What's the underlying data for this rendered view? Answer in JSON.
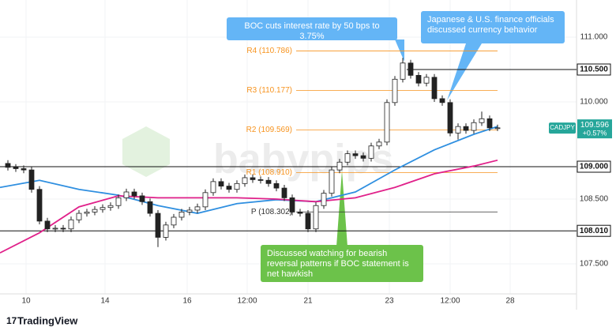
{
  "chart_data": {
    "type": "candlestick",
    "symbol": "CADJPY",
    "last_price": {
      "value": 109.596,
      "label": "109.596"
    },
    "change": {
      "value": 0.57,
      "label": "+0.57%"
    },
    "watermark": "babypips",
    "footer": "TradingView",
    "candle_color": "#222222",
    "open": [
      109.05,
      108.99,
      108.97,
      108.95,
      108.65,
      108.16,
      108.04,
      108.05,
      108.04,
      108.18,
      108.28,
      108.3,
      108.34,
      108.37,
      108.4,
      108.52,
      108.61,
      108.55,
      108.46,
      108.28,
      107.91,
      108.1,
      108.22,
      108.3,
      108.33,
      108.38,
      108.6,
      108.77,
      108.7,
      108.65,
      108.74,
      108.83,
      108.8,
      108.79,
      108.74,
      108.67,
      108.52,
      108.3,
      108.28,
      108.04,
      108.4,
      108.59,
      108.95,
      109.07,
      109.2,
      109.17,
      109.13,
      109.32,
      109.38,
      109.99,
      110.35,
      110.6,
      110.41,
      110.29,
      110.38,
      110.05,
      109.99,
      109.52,
      109.62,
      109.56,
      109.68,
      109.74,
      109.6
    ],
    "high": [
      109.1,
      109.04,
      109.02,
      109.0,
      108.7,
      108.21,
      108.1,
      108.1,
      108.23,
      108.33,
      108.35,
      108.39,
      108.42,
      108.45,
      108.57,
      108.66,
      108.66,
      108.6,
      108.51,
      108.33,
      108.15,
      108.27,
      108.35,
      108.38,
      108.43,
      108.65,
      108.82,
      108.82,
      108.75,
      108.79,
      108.88,
      108.88,
      108.85,
      108.84,
      108.79,
      108.72,
      108.57,
      108.35,
      108.33,
      108.45,
      108.64,
      109.0,
      109.12,
      109.25,
      109.25,
      109.22,
      109.37,
      109.43,
      110.04,
      110.4,
      110.68,
      110.65,
      110.46,
      110.43,
      110.43,
      110.1,
      110.04,
      109.67,
      109.67,
      109.73,
      109.85,
      109.79,
      109.65
    ],
    "low": [
      108.94,
      108.92,
      108.9,
      108.6,
      108.11,
      107.99,
      107.99,
      107.99,
      107.99,
      108.13,
      108.23,
      108.25,
      108.29,
      108.32,
      108.35,
      108.47,
      108.5,
      108.41,
      108.23,
      107.76,
      107.86,
      108.05,
      108.17,
      108.25,
      108.28,
      108.33,
      108.55,
      108.65,
      108.6,
      108.6,
      108.69,
      108.75,
      108.74,
      108.69,
      108.62,
      108.47,
      108.25,
      108.23,
      107.99,
      107.99,
      108.35,
      108.54,
      108.9,
      109.02,
      109.12,
      109.08,
      109.08,
      109.27,
      109.33,
      109.94,
      110.3,
      110.36,
      110.24,
      110.24,
      110.0,
      109.94,
      109.47,
      109.42,
      109.51,
      109.51,
      109.63,
      109.55,
      109.55
    ],
    "close": [
      108.99,
      108.97,
      108.95,
      108.65,
      108.16,
      108.04,
      108.05,
      108.04,
      108.18,
      108.28,
      108.3,
      108.34,
      108.37,
      108.4,
      108.52,
      108.61,
      108.55,
      108.46,
      108.28,
      107.91,
      108.1,
      108.22,
      108.3,
      108.33,
      108.38,
      108.6,
      108.77,
      108.7,
      108.65,
      108.74,
      108.83,
      108.8,
      108.79,
      108.74,
      108.67,
      108.52,
      108.3,
      108.28,
      108.04,
      108.4,
      108.59,
      108.95,
      109.07,
      109.2,
      109.17,
      109.13,
      109.32,
      109.38,
      109.99,
      110.35,
      110.6,
      110.41,
      110.29,
      110.38,
      110.05,
      109.99,
      109.52,
      109.62,
      109.56,
      109.68,
      109.74,
      109.6,
      109.6
    ],
    "moving_averages": [
      {
        "color": "#2f8fe0",
        "x": [
          -1,
          4,
          9,
          14,
          19,
          24,
          29,
          34,
          39,
          44,
          49,
          54,
          59,
          62
        ],
        "values": [
          108.68,
          108.79,
          108.65,
          108.56,
          108.4,
          108.28,
          108.43,
          108.49,
          108.46,
          108.61,
          108.95,
          109.26,
          109.5,
          109.62
        ]
      },
      {
        "color": "#e0218a",
        "x": [
          -1,
          4,
          9,
          14,
          19,
          24,
          29,
          34,
          39,
          44,
          49,
          54,
          59,
          62
        ],
        "values": [
          107.67,
          107.98,
          108.38,
          108.55,
          108.52,
          108.52,
          108.52,
          108.5,
          108.46,
          108.52,
          108.68,
          108.89,
          109.01,
          109.1
        ]
      }
    ],
    "levels": [
      {
        "value": 110.5,
        "label": "110.500"
      },
      {
        "value": 109.0,
        "label": "109.000"
      },
      {
        "value": 108.01,
        "label": "108.010"
      }
    ],
    "pivots": [
      {
        "value": 110.786,
        "label": "R4 (110.786)",
        "color": "#f7931e"
      },
      {
        "value": 110.177,
        "label": "R3 (110.177)",
        "color": "#f7931e"
      },
      {
        "value": 109.569,
        "label": "R2 (109.569)",
        "color": "#f7931e"
      },
      {
        "value": 108.91,
        "label": "R1 (108.910)",
        "color": "#f7931e"
      },
      {
        "value": 108.302,
        "label": "P (108.302)",
        "color": "#333333"
      }
    ],
    "annotations": [
      "BOC cuts interest rate by 50 bps to 3.75%",
      "Japanese & U.S. finance officials discussed currency behavior",
      "Discussed watching for bearish reversal patterns if BOC statement is net hawkish"
    ],
    "xlim": [
      -1,
      72
    ],
    "xticks": [
      {
        "value": 2.3,
        "label": "10"
      },
      {
        "value": 12.3,
        "label": "14"
      },
      {
        "value": 22.7,
        "label": "16"
      },
      {
        "value": 30.3,
        "label": "12:00"
      },
      {
        "value": 38,
        "label": "21"
      },
      {
        "value": 48.3,
        "label": "23"
      },
      {
        "value": 56,
        "label": "12:00"
      },
      {
        "value": 63.6,
        "label": "28"
      }
    ],
    "ylim": [
      107.037,
      111.573
    ],
    "yticks": [
      {
        "value": 107.5,
        "label": "107.500"
      },
      {
        "value": 108.5,
        "label": "108.500"
      },
      {
        "value": 110,
        "label": "110.000"
      },
      {
        "value": 111,
        "label": "111.000"
      }
    ],
    "grid": true
  }
}
